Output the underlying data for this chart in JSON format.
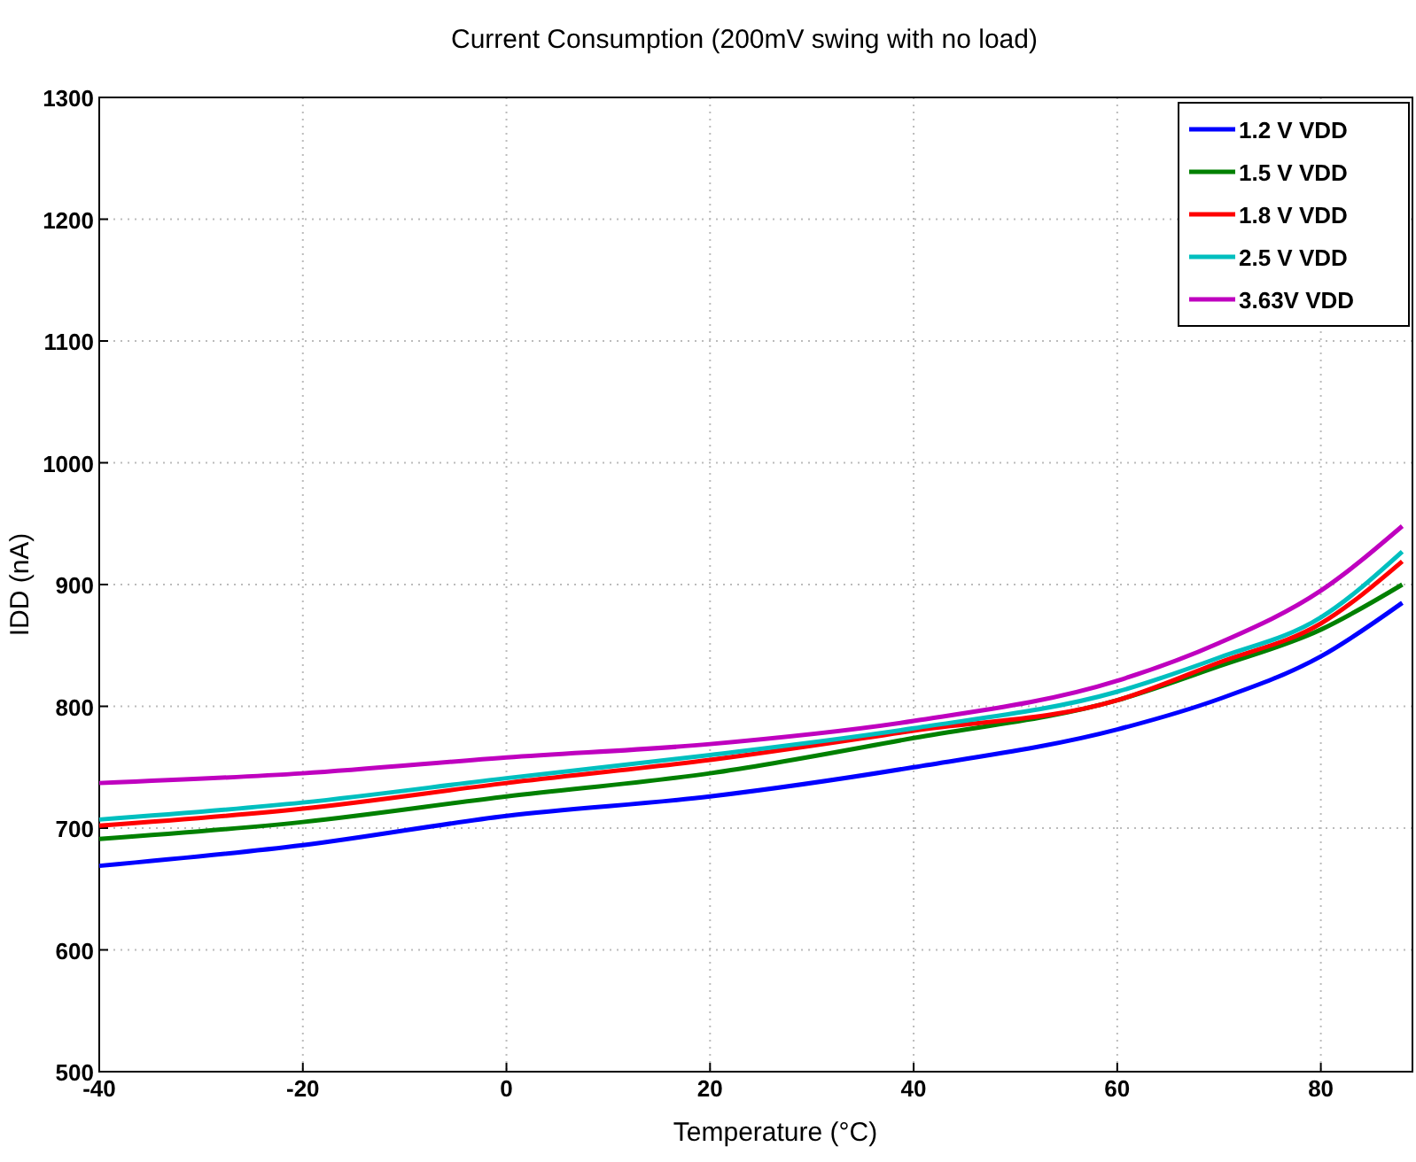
{
  "chart_data": {
    "type": "line",
    "title": "Current Consumption (200mV swing with no load)",
    "xlabel": "Temperature (°C)",
    "ylabel": "IDD (nA)",
    "x": [
      -40,
      -20,
      0,
      20,
      40,
      60,
      70,
      80,
      88
    ],
    "series": [
      {
        "name": "1.2 V VDD",
        "color": "#0000ff",
        "values": [
          669,
          686,
          710,
          726,
          750,
          781,
          806,
          841,
          885
        ]
      },
      {
        "name": "1.5 V VDD",
        "color": "#008000",
        "values": [
          691,
          705,
          726,
          745,
          774,
          805,
          833,
          863,
          900
        ]
      },
      {
        "name": "1.8 V VDD",
        "color": "#ff0000",
        "values": [
          702,
          716,
          737,
          756,
          780,
          805,
          836,
          868,
          919
        ]
      },
      {
        "name": "2.5 V VDD",
        "color": "#00bfbf",
        "values": [
          707,
          721,
          741,
          760,
          782,
          812,
          840,
          873,
          927
        ]
      },
      {
        "name": "3.63V VDD",
        "color": "#bf00bf",
        "values": [
          737,
          745,
          758,
          769,
          788,
          821,
          852,
          895,
          948
        ]
      }
    ],
    "xlim": [
      -40,
      89
    ],
    "xticks": [
      -40,
      -20,
      0,
      20,
      40,
      60,
      80
    ],
    "ylim": [
      500,
      1300
    ],
    "yticks": [
      500,
      600,
      700,
      800,
      900,
      1000,
      1100,
      1200,
      1300
    ],
    "grid": true,
    "legend": "top right",
    "marker": "none",
    "line_style": "solid"
  }
}
